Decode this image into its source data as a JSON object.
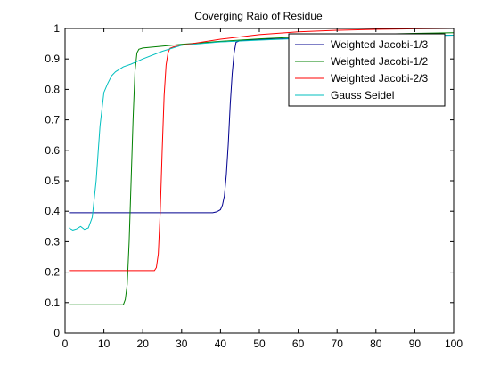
{
  "chart_data": {
    "type": "line",
    "title": "Coverging Raio of Residue",
    "xlabel": "",
    "ylabel": "",
    "xlim": [
      0,
      100
    ],
    "ylim": [
      0,
      1
    ],
    "xticks": [
      0,
      10,
      20,
      30,
      40,
      50,
      60,
      70,
      80,
      90,
      100
    ],
    "yticks": [
      0,
      0.1,
      0.2,
      0.3,
      0.4,
      0.5,
      0.6,
      0.7,
      0.8,
      0.9,
      1
    ],
    "grid": false,
    "legend_position": "top-right",
    "series": [
      {
        "name": "Weighted Jacobi-1/3",
        "color": "#00008f",
        "x": [
          1,
          10,
          20,
          30,
          38,
          39,
          40,
          40.5,
          41,
          41.5,
          42,
          42.5,
          43,
          43.5,
          44,
          45,
          50,
          60,
          70,
          80,
          90,
          100
        ],
        "y": [
          0.395,
          0.395,
          0.395,
          0.395,
          0.395,
          0.398,
          0.405,
          0.42,
          0.45,
          0.52,
          0.62,
          0.75,
          0.85,
          0.92,
          0.955,
          0.96,
          0.964,
          0.968,
          0.972,
          0.975,
          0.977,
          0.978
        ]
      },
      {
        "name": "Weighted Jacobi-1/2",
        "color": "#008000",
        "x": [
          1,
          10,
          15,
          15.5,
          16,
          16.5,
          17,
          17.5,
          18,
          18.5,
          19,
          20,
          30,
          40,
          50,
          60,
          70,
          80,
          90,
          100
        ],
        "y": [
          0.093,
          0.093,
          0.093,
          0.11,
          0.16,
          0.3,
          0.5,
          0.7,
          0.86,
          0.92,
          0.932,
          0.936,
          0.948,
          0.958,
          0.966,
          0.972,
          0.977,
          0.981,
          0.984,
          0.986
        ]
      },
      {
        "name": "Weighted Jacobi-2/3",
        "color": "#ff0000",
        "x": [
          1,
          10,
          20,
          23,
          23.5,
          24,
          24.5,
          25,
          25.5,
          26,
          26.5,
          27,
          28,
          30,
          40,
          50,
          60,
          70,
          80,
          90,
          100
        ],
        "y": [
          0.205,
          0.205,
          0.205,
          0.205,
          0.215,
          0.26,
          0.4,
          0.6,
          0.78,
          0.88,
          0.92,
          0.935,
          0.94,
          0.945,
          0.965,
          0.98,
          0.989,
          0.994,
          0.997,
          0.999,
          1.0
        ]
      },
      {
        "name": "Gauss Seidel",
        "color": "#00bfbf",
        "x": [
          1,
          2,
          3,
          4,
          5,
          6,
          7,
          8,
          9,
          10,
          11,
          12,
          13,
          14,
          15,
          17,
          20,
          25,
          30,
          40,
          50,
          60,
          70,
          80,
          90,
          100
        ],
        "y": [
          0.345,
          0.338,
          0.342,
          0.35,
          0.34,
          0.345,
          0.38,
          0.5,
          0.68,
          0.79,
          0.82,
          0.845,
          0.858,
          0.866,
          0.874,
          0.883,
          0.9,
          0.925,
          0.945,
          0.956,
          0.962,
          0.967,
          0.971,
          0.974,
          0.976,
          0.978
        ]
      }
    ]
  }
}
